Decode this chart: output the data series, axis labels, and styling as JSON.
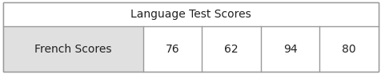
{
  "title": "Language Test Scores",
  "row_label": "French Scores",
  "scores": [
    76,
    62,
    94,
    80
  ],
  "header_bg": "#ffffff",
  "row_bg": "#e0e0e0",
  "cell_bg": "#ffffff",
  "border_color": "#999999",
  "text_color": "#222222",
  "title_fontsize": 10,
  "cell_fontsize": 10,
  "fig_width": 4.77,
  "fig_height": 0.93,
  "dpi": 100
}
